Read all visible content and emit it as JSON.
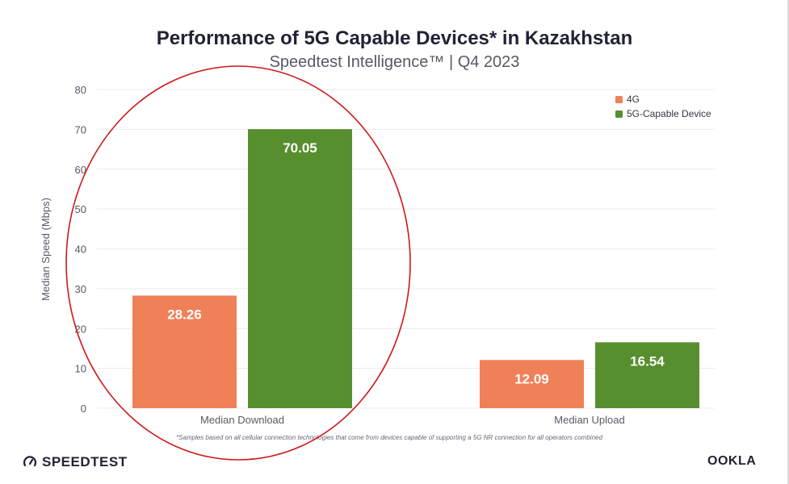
{
  "header": {
    "title": "Performance of 5G Capable Devices* in Kazakhstan",
    "subtitle": "Speedtest Intelligence™ | Q4 2023"
  },
  "chart_data": {
    "type": "bar",
    "categories": [
      "Median Download",
      "Median Upload"
    ],
    "series": [
      {
        "name": "4G",
        "color": "#f08057",
        "values": [
          28.26,
          12.09
        ]
      },
      {
        "name": "5G-Capable Device",
        "color": "#578f2e",
        "values": [
          70.05,
          16.54
        ]
      }
    ],
    "value_labels": [
      [
        "28.26",
        "12.09"
      ],
      [
        "70.05",
        "16.54"
      ]
    ],
    "ylabel": "Median Speed (Mbps)",
    "ylim": [
      0,
      80
    ],
    "yticks": [
      "0",
      "10",
      "20",
      "30",
      "40",
      "50",
      "60",
      "70",
      "80"
    ],
    "grid": true,
    "legend_position": "top-right",
    "footnote": "*Samples based on all cellular connection technologies that come from devices capable of supporting a 5G NR connection for all operators combined",
    "annotation": "red ellipse highlighting Median Download bars"
  },
  "footer": {
    "left_logo": "SPEEDTEST",
    "right_logo": "OOKLA"
  },
  "icons": {
    "speedtest_logo": "speedometer-icon"
  },
  "colors": {
    "highlight_ellipse": "#cc1a1a",
    "grid": "#ececec",
    "axis_text": "#555a66"
  }
}
